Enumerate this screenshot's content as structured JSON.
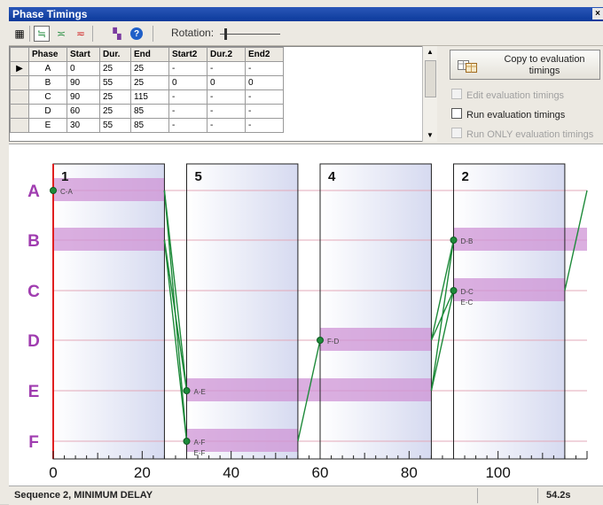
{
  "window": {
    "title": "Phase Timings",
    "close_glyph": "×"
  },
  "toolbar": {
    "buttons": [
      {
        "icon": "grid-table-icon",
        "glyph": "▦"
      },
      {
        "icon": "timing-diagram-icon",
        "glyph": "≒",
        "active": true
      },
      {
        "icon": "timing-edit-icon",
        "glyph": "≍"
      },
      {
        "icon": "timing-red-icon",
        "glyph": "≂"
      },
      {
        "icon": "phase-colors-icon",
        "glyph": "▚"
      },
      {
        "icon": "help-icon",
        "glyph": "?"
      }
    ],
    "rotation_label": "Rotation:"
  },
  "table": {
    "columns": [
      "Phase",
      "Start",
      "Dur.",
      "End",
      "Start2",
      "Dur.2",
      "End2"
    ],
    "rows": [
      [
        "A",
        "0",
        "25",
        "25",
        "-",
        "-",
        "-"
      ],
      [
        "B",
        "90",
        "55",
        "25",
        "0",
        "0",
        "0"
      ],
      [
        "C",
        "90",
        "25",
        "115",
        "-",
        "-",
        "-"
      ],
      [
        "D",
        "60",
        "25",
        "85",
        "-",
        "-",
        "-"
      ],
      [
        "E",
        "30",
        "55",
        "85",
        "-",
        "-",
        "-"
      ]
    ],
    "current_row_marker": "▶"
  },
  "panel": {
    "copy_button": "Copy to evaluation timings",
    "options": [
      {
        "label": "Edit evaluation timings",
        "enabled": false,
        "checked": false
      },
      {
        "label": "Run evaluation timings",
        "enabled": true,
        "checked": false
      },
      {
        "label": "Run ONLY evaluation timings",
        "enabled": false,
        "checked": false
      }
    ]
  },
  "chart_data": {
    "type": "phase-timing-diagram",
    "xlim": [
      0,
      120
    ],
    "x_ticks": [
      0,
      20,
      40,
      60,
      80,
      100
    ],
    "phases": [
      "A",
      "B",
      "C",
      "D",
      "E",
      "F"
    ],
    "stages": [
      {
        "label": "1",
        "start": 0,
        "end": 25
      },
      {
        "label": "5",
        "start": 30,
        "end": 55
      },
      {
        "label": "4",
        "start": 60,
        "end": 85
      },
      {
        "label": "2",
        "start": 90,
        "end": 115
      }
    ],
    "phase_bars": [
      {
        "phase": "A",
        "start": 0,
        "end": 25
      },
      {
        "phase": "B",
        "start": 0,
        "end": 25
      },
      {
        "phase": "B",
        "start": 90,
        "end": 120
      },
      {
        "phase": "C",
        "start": 90,
        "end": 115
      },
      {
        "phase": "D",
        "start": 60,
        "end": 85
      },
      {
        "phase": "E",
        "start": 30,
        "end": 85
      },
      {
        "phase": "F",
        "start": 30,
        "end": 55
      }
    ],
    "markers": [
      {
        "x": 0,
        "phase": "A",
        "label": "C-A"
      },
      {
        "x": 30,
        "phase": "E",
        "label": "A-E"
      },
      {
        "x": 30,
        "phase": "F",
        "label": "A-F"
      },
      {
        "x": 30,
        "phase": "F",
        "label": "E-F",
        "offset": 1
      },
      {
        "x": 60,
        "phase": "D",
        "label": "F-D"
      },
      {
        "x": 90,
        "phase": "B",
        "label": "D-B"
      },
      {
        "x": 90,
        "phase": "C",
        "label": "D-C"
      },
      {
        "x": 90,
        "phase": "C",
        "label": "E-C",
        "offset": 1
      }
    ],
    "transitions": [
      {
        "x1": 25,
        "p1": "A",
        "x2": 30,
        "p2": "E"
      },
      {
        "x1": 25,
        "p1": "A",
        "x2": 30,
        "p2": "F"
      },
      {
        "x1": 25,
        "p1": "B",
        "x2": 30,
        "p2": "F"
      },
      {
        "x1": 25,
        "p1": "B",
        "x2": 30,
        "p2": "E"
      },
      {
        "x1": 55,
        "p1": "F",
        "x2": 60,
        "p2": "D"
      },
      {
        "x1": 85,
        "p1": "D",
        "x2": 90,
        "p2": "B"
      },
      {
        "x1": 85,
        "p1": "D",
        "x2": 90,
        "p2": "C"
      },
      {
        "x1": 85,
        "p1": "E",
        "x2": 90,
        "p2": "C"
      },
      {
        "x1": 85,
        "p1": "E",
        "x2": 90,
        "p2": "B"
      },
      {
        "x1": 115,
        "p1": "C",
        "x2": 120,
        "p2": "A"
      }
    ],
    "colors": {
      "phase_label": "#a03db0",
      "bar": "#cf94d6",
      "stage_fill_start": "#ffffff",
      "stage_fill_end": "#d6daf0",
      "transition": "#1e8a3a",
      "start_line": "#e02020"
    }
  },
  "status": {
    "sequence": "Sequence 2, MINIMUM DELAY",
    "time": "54.2s"
  }
}
